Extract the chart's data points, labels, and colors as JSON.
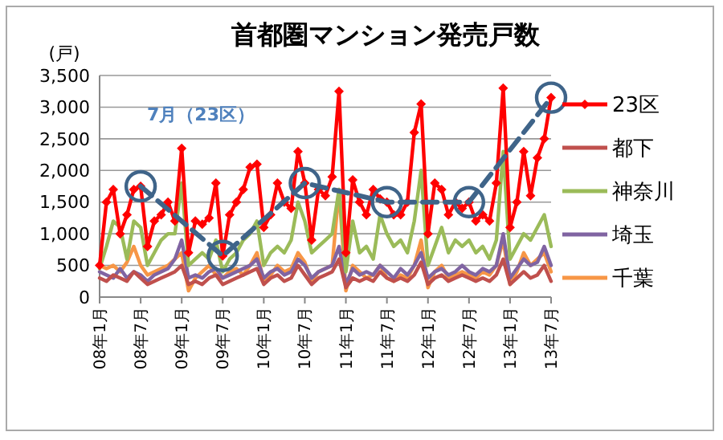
{
  "chart_data": {
    "type": "line",
    "title": "首都圏マンション発売戸数",
    "ylabel": "(戸)",
    "annotations": [
      "7月（23区）"
    ],
    "categories": [
      "08年1月",
      null,
      null,
      null,
      null,
      null,
      "08年7月",
      null,
      null,
      null,
      null,
      null,
      "09年1月",
      null,
      null,
      null,
      null,
      null,
      "09年7月",
      null,
      null,
      null,
      null,
      null,
      "10年1月",
      null,
      null,
      null,
      null,
      null,
      "10年7月",
      null,
      null,
      null,
      null,
      null,
      "11年1月",
      null,
      null,
      null,
      null,
      null,
      "11年7月",
      null,
      null,
      null,
      null,
      null,
      "12年1月",
      null,
      null,
      null,
      null,
      null,
      "12年7月",
      null,
      null,
      null,
      null,
      null,
      "13年1月",
      null,
      null,
      null,
      null,
      null,
      "13年7月"
    ],
    "ylim": [
      0,
      3500
    ],
    "yticks": [
      {
        "value": 0,
        "label": "0"
      },
      {
        "value": 500,
        "label": "500"
      },
      {
        "value": 1000,
        "label": "1,000"
      },
      {
        "value": 1500,
        "label": "1,500"
      },
      {
        "value": 2000,
        "label": "2,000"
      },
      {
        "value": 2500,
        "label": "2,500"
      },
      {
        "value": 3000,
        "label": "3,000"
      },
      {
        "value": 3500,
        "label": "3,500"
      }
    ],
    "grid": "y",
    "legend": "right",
    "series": [
      {
        "name": "千葉",
        "color": "#f79646",
        "marker": "none",
        "values": [
          500,
          450,
          500,
          400,
          550,
          800,
          500,
          350,
          400,
          450,
          500,
          600,
          700,
          100,
          300,
          400,
          500,
          350,
          300,
          400,
          450,
          350,
          500,
          700,
          250,
          350,
          500,
          400,
          450,
          700,
          550,
          250,
          400,
          450,
          500,
          1700,
          100,
          500,
          400,
          300,
          350,
          500,
          300,
          250,
          350,
          300,
          500,
          900,
          150,
          400,
          500,
          300,
          350,
          400,
          350,
          300,
          400,
          350,
          500,
          900,
          200,
          400,
          700,
          500,
          600,
          700,
          400
        ]
      },
      {
        "name": "埼玉",
        "color": "#8064a2",
        "marker": "none",
        "values": [
          400,
          350,
          300,
          450,
          300,
          400,
          350,
          250,
          350,
          400,
          450,
          600,
          900,
          300,
          350,
          300,
          400,
          450,
          300,
          350,
          400,
          450,
          500,
          600,
          300,
          400,
          450,
          350,
          400,
          600,
          500,
          300,
          400,
          450,
          500,
          800,
          200,
          450,
          350,
          400,
          350,
          500,
          400,
          300,
          450,
          350,
          500,
          700,
          300,
          400,
          450,
          350,
          400,
          500,
          400,
          350,
          450,
          400,
          500,
          1000,
          300,
          450,
          600,
          500,
          550,
          800,
          500
        ]
      },
      {
        "name": "神奈川",
        "color": "#9bbb59",
        "marker": "none",
        "values": [
          450,
          800,
          1200,
          1100,
          600,
          1200,
          1100,
          500,
          700,
          900,
          1000,
          1000,
          1800,
          500,
          600,
          700,
          600,
          900,
          400,
          600,
          700,
          900,
          1000,
          1200,
          500,
          700,
          800,
          700,
          900,
          1500,
          1200,
          700,
          800,
          900,
          1000,
          1700,
          400,
          1200,
          700,
          800,
          600,
          1300,
          1000,
          800,
          900,
          700,
          1200,
          2000,
          500,
          800,
          1100,
          700,
          900,
          800,
          900,
          700,
          800,
          600,
          900,
          2300,
          600,
          800,
          1000,
          900,
          1100,
          1300,
          800
        ]
      },
      {
        "name": "都下",
        "color": "#c0504d",
        "marker": "none",
        "values": [
          300,
          250,
          350,
          300,
          250,
          400,
          300,
          200,
          250,
          300,
          350,
          400,
          500,
          200,
          250,
          200,
          300,
          350,
          200,
          250,
          300,
          350,
          400,
          450,
          200,
          300,
          350,
          250,
          300,
          500,
          350,
          200,
          300,
          350,
          400,
          600,
          150,
          300,
          250,
          300,
          250,
          400,
          300,
          250,
          300,
          250,
          350,
          550,
          200,
          300,
          350,
          250,
          300,
          350,
          300,
          250,
          300,
          250,
          350,
          600,
          200,
          300,
          400,
          300,
          350,
          500,
          250
        ]
      },
      {
        "name": "23区",
        "color": "#ff0000",
        "marker": "diamond",
        "values": [
          500,
          1500,
          1700,
          1000,
          1300,
          1700,
          1750,
          800,
          1200,
          1300,
          1500,
          1200,
          2350,
          700,
          1200,
          1150,
          1250,
          1800,
          650,
          1300,
          1500,
          1700,
          2050,
          2100,
          1100,
          1300,
          1800,
          1500,
          1400,
          2300,
          1800,
          900,
          1700,
          1600,
          1900,
          3250,
          700,
          1850,
          1500,
          1300,
          1700,
          1550,
          1500,
          1300,
          1300,
          1500,
          2600,
          3050,
          1000,
          1800,
          1700,
          1300,
          1500,
          1400,
          1500,
          1200,
          1300,
          1200,
          1800,
          3300,
          1100,
          1500,
          2300,
          1600,
          2200,
          2500,
          3150
        ]
      },
      {
        "color": "#3f6489",
        "marker": "circle",
        "line_style": "dashed",
        "x": [
          "08年7月",
          "09年7月",
          "10年7月",
          "11年7月",
          "12年7月",
          "13年7月"
        ],
        "values": [
          1750,
          650,
          1800,
          1500,
          1500,
          3150
        ]
      }
    ]
  }
}
